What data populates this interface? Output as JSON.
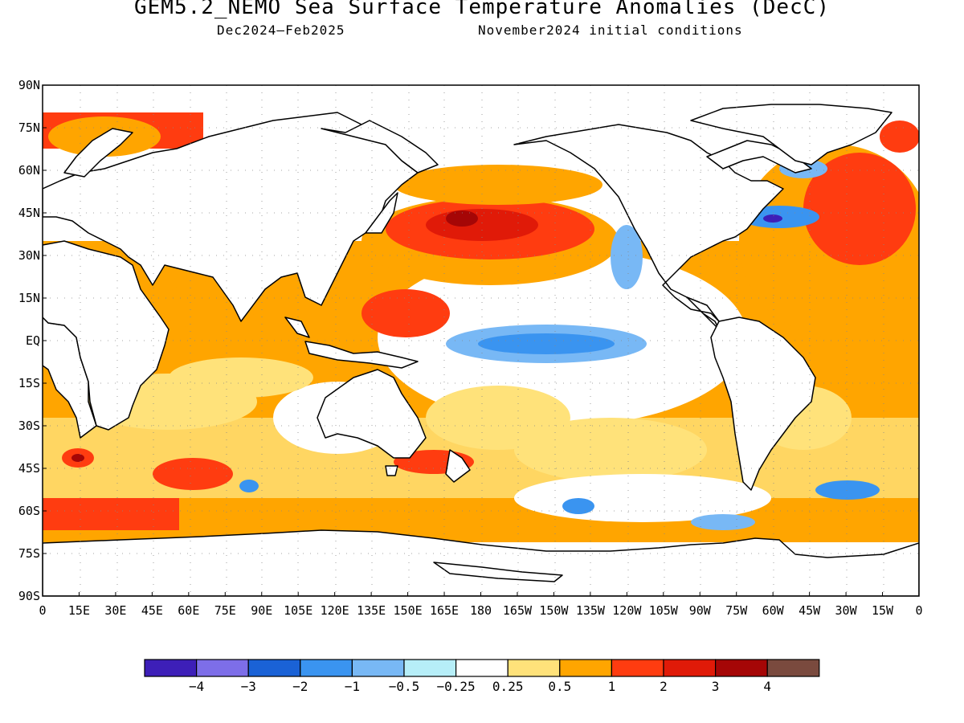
{
  "title": "GEM5.2_NEMO Sea Surface Temperature Anomalies (DecC)",
  "subtitle_left": "Dec2024—Feb2025",
  "subtitle_right": "November2024 initial conditions",
  "map": {
    "projection": "equirectangular",
    "lat_range": [
      -90,
      90
    ],
    "lon_range": [
      0,
      360
    ],
    "grid": "dotted",
    "lat_labels": [
      "90N",
      "75N",
      "60N",
      "45N",
      "30N",
      "15N",
      "EQ",
      "15S",
      "30S",
      "45S",
      "60S",
      "75S",
      "90S"
    ],
    "lon_labels": [
      "0",
      "15E",
      "30E",
      "45E",
      "60E",
      "75E",
      "90E",
      "105E",
      "120E",
      "135E",
      "150E",
      "165E",
      "180",
      "165W",
      "150W",
      "135W",
      "120W",
      "105W",
      "90W",
      "75W",
      "60W",
      "45W",
      "30W",
      "15W",
      "0"
    ]
  },
  "colorbar": {
    "colors": [
      "#3d1fb8",
      "#7d6ee8",
      "#1a62d6",
      "#3a94f0",
      "#78b8f5",
      "#b6eef8",
      "#ffffff",
      "#ffe27a",
      "#ffa500",
      "#ff3c10",
      "#e01a08",
      "#a50606",
      "#7a4a3e"
    ],
    "labels": [
      "−4",
      "−3",
      "−2",
      "−1",
      "−0.5",
      "−0.25",
      "0.25",
      "0.5",
      "1",
      "2",
      "3",
      "4"
    ]
  },
  "anomaly_fields": [
    {
      "name": "warm-north-atlantic",
      "lat": 45,
      "lon": 330,
      "level": 1.5
    },
    {
      "name": "cold-gulf-stream",
      "lat": 42,
      "lon": 303,
      "level": -2
    },
    {
      "name": "warm-north-pacific",
      "lat": 40,
      "lon": 180,
      "level": 2
    },
    {
      "name": "cold-equatorial-pacific",
      "lat": -1,
      "lon": 225,
      "level": -1
    },
    {
      "name": "warm-southern-ocean",
      "lat": -63,
      "lon": 30,
      "level": 1.5
    }
  ]
}
